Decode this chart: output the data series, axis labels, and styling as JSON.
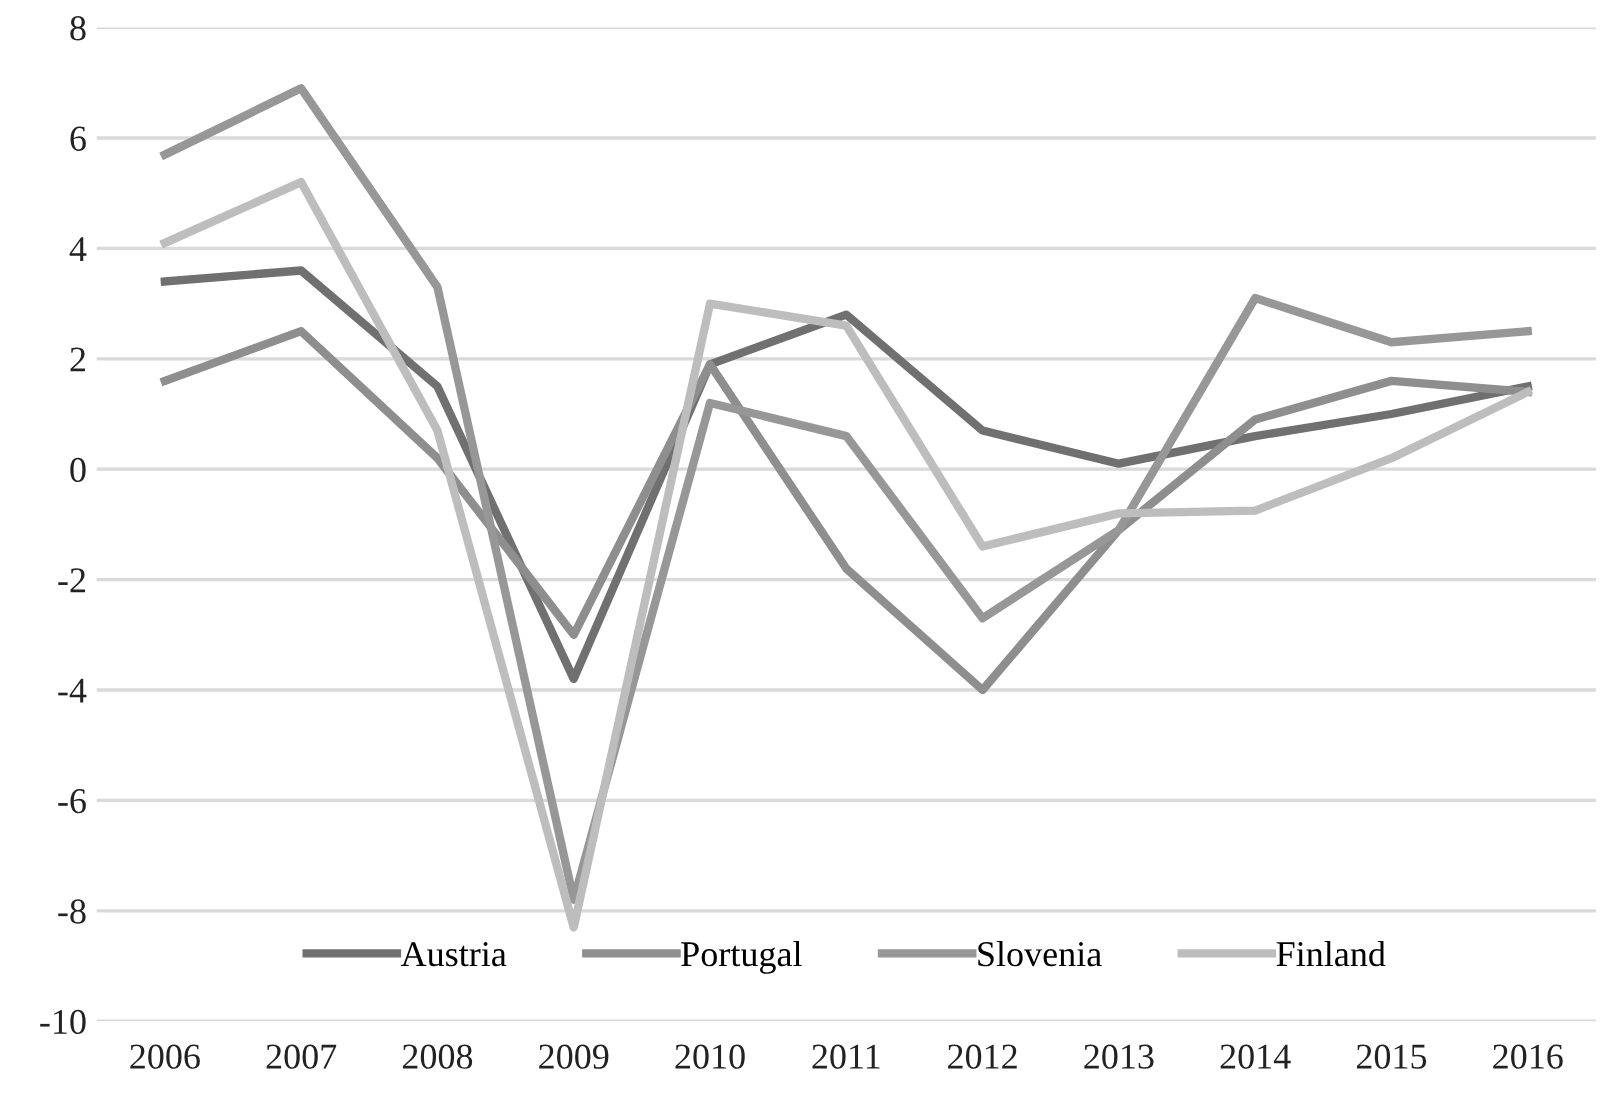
{
  "chart_data": {
    "type": "line",
    "categories": [
      "2006",
      "2007",
      "2008",
      "2009",
      "2010",
      "2011",
      "2012",
      "2013",
      "2014",
      "2015",
      "2016"
    ],
    "series": [
      {
        "name": "Austria",
        "color": "#707070",
        "values": [
          3.4,
          3.6,
          1.5,
          -3.8,
          1.9,
          2.8,
          0.7,
          0.1,
          0.6,
          1.0,
          1.5
        ]
      },
      {
        "name": "Portugal",
        "color": "#8e8e8e",
        "values": [
          1.6,
          2.5,
          0.2,
          -3.0,
          1.9,
          -1.8,
          -4.0,
          -1.1,
          0.9,
          1.6,
          1.4
        ]
      },
      {
        "name": "Slovenia",
        "color": "#979797",
        "values": [
          5.7,
          6.9,
          3.3,
          -7.8,
          1.2,
          0.6,
          -2.7,
          -1.1,
          3.1,
          2.3,
          2.5
        ]
      },
      {
        "name": "Finland",
        "color": "#bdbdbd",
        "values": [
          4.1,
          5.2,
          0.7,
          -8.3,
          3.0,
          2.6,
          -1.4,
          -0.8,
          -0.75,
          0.2,
          1.4
        ]
      }
    ],
    "ylim": [
      -10,
      8
    ],
    "yticks": [
      -10,
      -8,
      -6,
      -4,
      -2,
      0,
      2,
      4,
      6,
      8
    ],
    "grid": "y",
    "legend": "bottom",
    "marker": "none",
    "line_style": "solid"
  }
}
